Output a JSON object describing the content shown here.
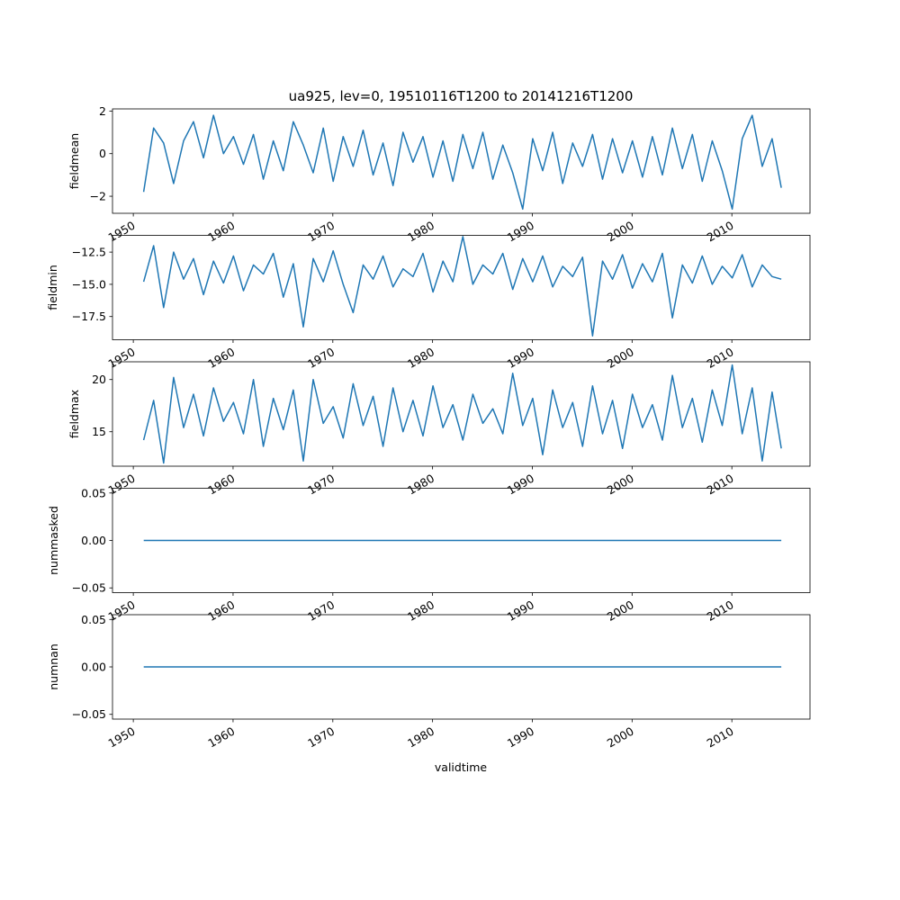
{
  "title": "ua925, lev=0, 19510116T1200 to 20141216T1200",
  "xlabel": "validtime",
  "colors": {
    "line": "#1f77b4",
    "axes": "#000000",
    "background": "#ffffff"
  },
  "x_ticks": [
    "1950",
    "1960",
    "1970",
    "1980",
    "1990",
    "2000",
    "2010"
  ],
  "chart_data": [
    {
      "type": "line",
      "ylabel": "fieldmean",
      "x_range": [
        "1951-01-16",
        "2014-12-16"
      ],
      "ylim": [
        -2.8,
        2.1
      ],
      "y_ticks": [
        2,
        0,
        -2
      ],
      "y_tick_labels": [
        "2",
        "0",
        "−2"
      ],
      "x_tick_labels_visible": true,
      "series": [
        {
          "x": [
            "1951-01",
            "1952-01",
            "1953-01",
            "1954-01",
            "1955-01",
            "1956-01",
            "1957-01",
            "1958-01",
            "1959-01",
            "1960-01",
            "1961-01",
            "1962-01",
            "1963-01",
            "1964-01",
            "1965-01",
            "1966-01",
            "1967-01",
            "1968-01",
            "1969-01",
            "1970-01",
            "1971-01",
            "1972-01",
            "1973-01",
            "1974-01",
            "1975-01",
            "1976-01",
            "1977-01",
            "1978-01",
            "1979-01",
            "1980-01",
            "1981-01",
            "1982-01",
            "1983-01",
            "1984-01",
            "1985-01",
            "1986-01",
            "1987-01",
            "1988-01",
            "1989-01",
            "1990-01",
            "1991-01",
            "1992-01",
            "1993-01",
            "1994-01",
            "1995-01",
            "1996-01",
            "1997-01",
            "1998-01",
            "1999-01",
            "2000-01",
            "2001-01",
            "2002-01",
            "2003-01",
            "2004-01",
            "2005-01",
            "2006-01",
            "2007-01",
            "2008-01",
            "2009-01",
            "2010-01",
            "2011-01",
            "2012-01",
            "2013-01",
            "2014-01",
            "2014-12"
          ],
          "values": [
            -1.8,
            1.2,
            0.5,
            -1.4,
            0.6,
            1.5,
            -0.2,
            1.8,
            0.0,
            0.8,
            -0.5,
            0.9,
            -1.2,
            0.6,
            -0.8,
            1.5,
            0.4,
            -0.9,
            1.2,
            -1.3,
            0.8,
            -0.6,
            1.1,
            -1.0,
            0.5,
            -1.5,
            1.0,
            -0.4,
            0.8,
            -1.1,
            0.6,
            -1.3,
            0.9,
            -0.7,
            1.0,
            -1.2,
            0.4,
            -0.9,
            -2.6,
            0.7,
            -0.8,
            1.0,
            -1.4,
            0.5,
            -0.6,
            0.9,
            -1.2,
            0.7,
            -0.9,
            0.6,
            -1.1,
            0.8,
            -1.0,
            1.2,
            -0.7,
            0.9,
            -1.3,
            0.6,
            -0.8,
            -2.6,
            0.7,
            1.8,
            -0.6,
            0.7,
            -1.6
          ]
        }
      ]
    },
    {
      "type": "line",
      "ylabel": "fieldmin",
      "x_range": [
        "1951-01-16",
        "2014-12-16"
      ],
      "ylim": [
        -19.3,
        -11.2
      ],
      "y_ticks": [
        -12.5,
        -15.0,
        -17.5
      ],
      "y_tick_labels": [
        "−12.5",
        "−15.0",
        "−17.5"
      ],
      "x_tick_labels_visible": true,
      "series": [
        {
          "x": [
            "1951-01",
            "1952-01",
            "1953-01",
            "1954-01",
            "1955-01",
            "1956-01",
            "1957-01",
            "1958-01",
            "1959-01",
            "1960-01",
            "1961-01",
            "1962-01",
            "1963-01",
            "1964-01",
            "1965-01",
            "1966-01",
            "1967-01",
            "1968-01",
            "1969-01",
            "1970-01",
            "1971-01",
            "1972-01",
            "1973-01",
            "1974-01",
            "1975-01",
            "1976-01",
            "1977-01",
            "1978-01",
            "1979-01",
            "1980-01",
            "1981-01",
            "1982-01",
            "1983-01",
            "1984-01",
            "1985-01",
            "1986-01",
            "1987-01",
            "1988-01",
            "1989-01",
            "1990-01",
            "1991-01",
            "1992-01",
            "1993-01",
            "1994-01",
            "1995-01",
            "1996-01",
            "1997-01",
            "1998-01",
            "1999-01",
            "2000-01",
            "2001-01",
            "2002-01",
            "2003-01",
            "2004-01",
            "2005-01",
            "2006-01",
            "2007-01",
            "2008-01",
            "2009-01",
            "2010-01",
            "2011-01",
            "2012-01",
            "2013-01",
            "2014-01",
            "2014-12"
          ],
          "values": [
            -14.8,
            -12.0,
            -16.8,
            -12.5,
            -14.6,
            -13.0,
            -15.8,
            -13.2,
            -14.9,
            -12.8,
            -15.5,
            -13.5,
            -14.2,
            -12.6,
            -16.0,
            -13.4,
            -18.3,
            -13.0,
            -14.8,
            -12.4,
            -15.0,
            -17.2,
            -13.5,
            -14.6,
            -12.8,
            -15.2,
            -13.8,
            -14.4,
            -12.6,
            -15.6,
            -13.2,
            -14.8,
            -11.3,
            -15.0,
            -13.5,
            -14.2,
            -12.6,
            -15.4,
            -13.0,
            -14.8,
            -12.8,
            -15.2,
            -13.6,
            -14.4,
            -12.9,
            -19.0,
            -13.2,
            -14.6,
            -12.7,
            -15.3,
            -13.4,
            -14.8,
            -12.6,
            -17.6,
            -13.5,
            -14.9,
            -12.8,
            -15.0,
            -13.6,
            -14.5,
            -12.7,
            -15.2,
            -13.5,
            -14.4,
            -14.6
          ]
        }
      ]
    },
    {
      "type": "line",
      "ylabel": "fieldmax",
      "x_range": [
        "1951-01-16",
        "2014-12-16"
      ],
      "ylim": [
        11.7,
        21.7
      ],
      "y_ticks": [
        20,
        15
      ],
      "y_tick_labels": [
        "20",
        "15"
      ],
      "x_tick_labels_visible": true,
      "series": [
        {
          "x": [
            "1951-01",
            "1952-01",
            "1953-01",
            "1954-01",
            "1955-01",
            "1956-01",
            "1957-01",
            "1958-01",
            "1959-01",
            "1960-01",
            "1961-01",
            "1962-01",
            "1963-01",
            "1964-01",
            "1965-01",
            "1966-01",
            "1967-01",
            "1968-01",
            "1969-01",
            "1970-01",
            "1971-01",
            "1972-01",
            "1973-01",
            "1974-01",
            "1975-01",
            "1976-01",
            "1977-01",
            "1978-01",
            "1979-01",
            "1980-01",
            "1981-01",
            "1982-01",
            "1983-01",
            "1984-01",
            "1985-01",
            "1986-01",
            "1987-01",
            "1988-01",
            "1989-01",
            "1990-01",
            "1991-01",
            "1992-01",
            "1993-01",
            "1994-01",
            "1995-01",
            "1996-01",
            "1997-01",
            "1998-01",
            "1999-01",
            "2000-01",
            "2001-01",
            "2002-01",
            "2003-01",
            "2004-01",
            "2005-01",
            "2006-01",
            "2007-01",
            "2008-01",
            "2009-01",
            "2010-01",
            "2011-01",
            "2012-01",
            "2013-01",
            "2014-01",
            "2014-12"
          ],
          "values": [
            14.2,
            18.0,
            12.0,
            20.2,
            15.4,
            18.6,
            14.6,
            19.2,
            16.0,
            17.8,
            14.8,
            20.0,
            13.6,
            18.2,
            15.2,
            19.0,
            12.2,
            20.0,
            15.8,
            17.4,
            14.4,
            19.6,
            15.6,
            18.4,
            13.6,
            19.2,
            15.0,
            18.0,
            14.6,
            19.4,
            15.4,
            17.6,
            14.2,
            18.6,
            15.8,
            17.2,
            14.8,
            20.6,
            15.6,
            18.2,
            12.8,
            19.0,
            15.4,
            17.8,
            13.6,
            19.4,
            14.8,
            18.0,
            13.4,
            18.6,
            15.4,
            17.6,
            14.2,
            20.4,
            15.4,
            18.2,
            14.0,
            19.0,
            15.6,
            21.4,
            14.8,
            19.2,
            12.2,
            18.8,
            13.4
          ]
        }
      ]
    },
    {
      "type": "line",
      "ylabel": "nummasked",
      "x_range": [
        "1951-01-16",
        "2014-12-16"
      ],
      "ylim": [
        -0.055,
        0.055
      ],
      "y_ticks": [
        0.05,
        0.0,
        -0.05
      ],
      "y_tick_labels": [
        "0.05",
        "0.00",
        "−0.05"
      ],
      "x_tick_labels_visible": true,
      "series": [
        {
          "x": [
            "1951-01-16",
            "2014-12-16"
          ],
          "values": [
            0,
            0
          ]
        }
      ]
    },
    {
      "type": "line",
      "ylabel": "numnan",
      "x_range": [
        "1951-01-16",
        "2014-12-16"
      ],
      "ylim": [
        -0.055,
        0.055
      ],
      "y_ticks": [
        0.05,
        0.0,
        -0.05
      ],
      "y_tick_labels": [
        "0.05",
        "0.00",
        "−0.05"
      ],
      "x_tick_labels_visible": true,
      "series": [
        {
          "x": [
            "1951-01-16",
            "2014-12-16"
          ],
          "values": [
            0,
            0
          ]
        }
      ]
    }
  ]
}
